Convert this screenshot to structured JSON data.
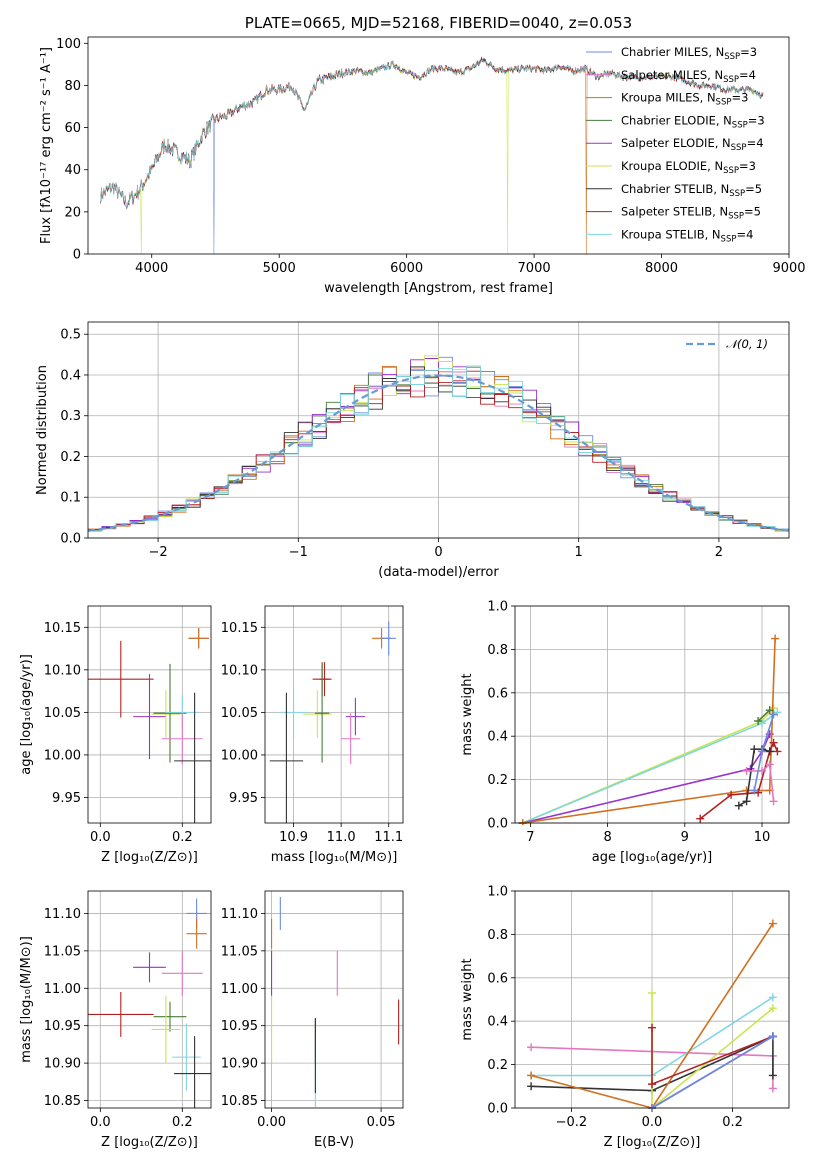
{
  "chart_data": [
    {
      "id": "spectrum",
      "type": "line",
      "title": "PLATE=0665, MJD=52168, FIBERID=0040, z=0.053",
      "xlabel": "wavelength [Angstrom, rest frame]",
      "ylabel": "Flux [fλ10⁻¹⁷ erg cm⁻² s⁻¹ A⁻¹]",
      "xlim": [
        3500,
        9000
      ],
      "ylim": [
        0,
        103
      ],
      "xticks": [
        4000,
        5000,
        6000,
        7000,
        8000,
        9000
      ],
      "yticks": [
        0,
        20,
        40,
        60,
        80,
        100
      ],
      "grid": false,
      "legend_position": "right",
      "spectrum_x": [
        3600,
        3700,
        3800,
        3900,
        4000,
        4100,
        4200,
        4300,
        4400,
        4500,
        4600,
        4700,
        4800,
        4900,
        5000,
        5100,
        5200,
        5300,
        5400,
        5500,
        5600,
        5700,
        5800,
        5900,
        6000,
        6100,
        6200,
        6300,
        6400,
        6500,
        6600,
        6700,
        6800,
        6900,
        7000,
        7100,
        7200,
        7300,
        7400,
        7500,
        7600,
        7700,
        7800,
        7900,
        8000,
        8100,
        8200,
        8300,
        8400,
        8500,
        8600,
        8700,
        8800
      ],
      "spectrum_y": [
        28,
        32,
        24,
        30,
        40,
        52,
        48,
        44,
        57,
        64,
        66,
        70,
        72,
        78,
        78,
        80,
        68,
        82,
        84,
        86,
        87,
        86,
        88,
        90,
        86,
        84,
        88,
        88,
        86,
        88,
        92,
        88,
        87,
        88,
        88,
        87,
        89,
        87,
        88,
        84,
        86,
        84,
        84,
        84,
        84,
        84,
        82,
        80,
        80,
        78,
        78,
        78,
        75
      ],
      "dropouts": [
        {
          "x": 3920,
          "series": "Kroupa ELODIE"
        },
        {
          "x": 4490,
          "series": "Chabrier MILES"
        },
        {
          "x": 6790,
          "series": "Kroupa ELODIE"
        },
        {
          "x": 7410,
          "series": "Kroupa MILES"
        }
      ],
      "legend": [
        {
          "name": "Chabrier MILES, N",
          "sub": "SSP",
          "value": "=3",
          "color": "#6b8ae0"
        },
        {
          "name": "Salpeter MILES, N",
          "sub": "SSP",
          "value": "=4",
          "color": "#e377c2"
        },
        {
          "name": "Kroupa MILES, N",
          "sub": "SSP",
          "value": "=3",
          "color": "#d26f1e"
        },
        {
          "name": "Chabrier ELODIE, N",
          "sub": "SSP",
          "value": "=3",
          "color": "#4a7a3a"
        },
        {
          "name": "Salpeter ELODIE, N",
          "sub": "SSP",
          "value": "=4",
          "color": "#9932cc"
        },
        {
          "name": "Kroupa ELODIE, N",
          "sub": "SSP",
          "value": "=3",
          "color": "#c8e650"
        },
        {
          "name": "Chabrier STELIB, N",
          "sub": "SSP",
          "value": "=5",
          "color": "#333333"
        },
        {
          "name": "Salpeter STELIB, N",
          "sub": "SSP",
          "value": "=5",
          "color": "#b22222"
        },
        {
          "name": "Kroupa STELIB, N",
          "sub": "SSP",
          "value": "=4",
          "color": "#7fd7e0"
        }
      ]
    },
    {
      "id": "residuals",
      "type": "line",
      "xlabel": "(data-model)/error",
      "ylabel": "Normed distribution",
      "xlim": [
        -2.5,
        2.5
      ],
      "ylim": [
        0,
        0.53
      ],
      "xticks": [
        -2,
        -1,
        0,
        1,
        2
      ],
      "xtick_labels": [
        "−2",
        "−1",
        "0",
        "1",
        "2"
      ],
      "yticks": [
        0.0,
        0.1,
        0.2,
        0.3,
        0.4,
        0.5
      ],
      "ytick_labels": [
        "0.0",
        "0.1",
        "0.2",
        "0.3",
        "0.4",
        "0.5"
      ],
      "grid": true,
      "legend": [
        {
          "name": "𝒩(0, 1)",
          "color": "#6a9ad6"
        }
      ],
      "legend_position": "top-right",
      "bin_width": 0.1,
      "hist_colors": [
        "#6b8ae0",
        "#e377c2",
        "#d26f1e",
        "#4a7a3a",
        "#9932cc",
        "#c8e650",
        "#333333",
        "#b22222",
        "#7fd7e0"
      ]
    },
    {
      "id": "age-vs-Z",
      "type": "scatter",
      "xlabel": "Z [log₁₀(Z/Z⊙)]",
      "ylabel": "age  [log₁₀(age/yr)]",
      "xlim": [
        -0.03,
        0.27
      ],
      "ylim": [
        9.92,
        10.175
      ],
      "xticks": [
        0.0,
        0.2
      ],
      "xtick_labels": [
        "0.0",
        "0.2"
      ],
      "yticks": [
        9.95,
        10.0,
        10.05,
        10.1,
        10.15
      ],
      "ytick_labels": [
        "9.95",
        "10.00",
        "10.05",
        "10.10",
        "10.15"
      ],
      "grid": true,
      "points": [
        {
          "x": 0.24,
          "y": 10.137,
          "xerr": 0.025,
          "yerr": 0.012,
          "color": "#6b8ae0"
        },
        {
          "x": 0.24,
          "y": 10.137,
          "xerr": 0.025,
          "yerr": 0.012,
          "color": "#d26f1e"
        },
        {
          "x": 0.05,
          "y": 10.089,
          "xerr": 0.08,
          "yerr": 0.045,
          "color": "#b22222"
        },
        {
          "x": 0.12,
          "y": 10.045,
          "xerr": 0.04,
          "yerr": 0.05,
          "color": "#9932cc"
        },
        {
          "x": 0.16,
          "y": 10.048,
          "xerr": 0.035,
          "yerr": 0.028,
          "color": "#c8e650"
        },
        {
          "x": 0.17,
          "y": 10.049,
          "xerr": 0.04,
          "yerr": 0.058,
          "color": "#4a7a3a"
        },
        {
          "x": 0.2,
          "y": 10.05,
          "xerr": 0.04,
          "yerr": 0.02,
          "color": "#7fd7e0"
        },
        {
          "x": 0.2,
          "y": 10.019,
          "xerr": 0.05,
          "yerr": 0.03,
          "color": "#e377c2"
        },
        {
          "x": 0.23,
          "y": 9.993,
          "xerr": 0.05,
          "yerr": 0.08,
          "color": "#333333"
        }
      ]
    },
    {
      "id": "age-vs-mass",
      "type": "scatter",
      "xlabel": "mass [log₁₀(M/M⊙)]",
      "ylabel": "",
      "xlim": [
        10.84,
        11.13
      ],
      "ylim": [
        9.92,
        10.175
      ],
      "xticks": [
        10.9,
        11.0,
        11.1
      ],
      "xtick_labels": [
        "10.9",
        "11.0",
        "11.1"
      ],
      "yticks": [
        9.95,
        10.0,
        10.05,
        10.1,
        10.15
      ],
      "ytick_labels": [
        "9.95",
        "10.00",
        "10.05",
        "10.10",
        "10.15"
      ],
      "grid": true,
      "points": [
        {
          "x": 11.085,
          "y": 10.137,
          "xerr": 0.02,
          "yerr": 0.012,
          "color": "#d26f1e"
        },
        {
          "x": 11.1,
          "y": 10.137,
          "xerr": 0.015,
          "yerr": 0.02,
          "color": "#6b8ae0"
        },
        {
          "x": 10.96,
          "y": 10.089,
          "xerr": 0.02,
          "yerr": 0.02,
          "color": "#b22222"
        },
        {
          "x": 10.965,
          "y": 10.089,
          "xerr": 0.01,
          "yerr": 0.02,
          "color": "#b22222"
        },
        {
          "x": 10.9,
          "y": 10.05,
          "xerr": 0.03,
          "yerr": 0.03,
          "color": "#7fd7e0"
        },
        {
          "x": 10.95,
          "y": 10.048,
          "xerr": 0.03,
          "yerr": 0.028,
          "color": "#c8e650"
        },
        {
          "x": 10.96,
          "y": 10.049,
          "xerr": 0.015,
          "yerr": 0.058,
          "color": "#4a7a3a"
        },
        {
          "x": 11.03,
          "y": 10.045,
          "xerr": 0.02,
          "yerr": 0.022,
          "color": "#9932cc"
        },
        {
          "x": 11.02,
          "y": 10.019,
          "xerr": 0.02,
          "yerr": 0.03,
          "color": "#e377c2"
        },
        {
          "x": 10.885,
          "y": 9.993,
          "xerr": 0.035,
          "yerr": 0.08,
          "color": "#333333"
        }
      ]
    },
    {
      "id": "massweight-vs-age",
      "type": "line",
      "xlabel": "age  [log₁₀(age/yr)]",
      "ylabel": "mass weight",
      "xlim": [
        6.8,
        10.35
      ],
      "ylim": [
        0.0,
        1.0
      ],
      "xticks": [
        7,
        8,
        9,
        10
      ],
      "xtick_labels": [
        "7",
        "8",
        "9",
        "10"
      ],
      "yticks": [
        0.0,
        0.2,
        0.4,
        0.6,
        0.8,
        1.0
      ],
      "ytick_labels": [
        "0.0",
        "0.2",
        "0.4",
        "0.6",
        "0.8",
        "1.0"
      ],
      "grid": true,
      "series": [
        {
          "color": "#c8e650",
          "points": [
            [
              6.9,
              0.0
            ],
            [
              10.0,
              0.47
            ],
            [
              10.15,
              0.53
            ]
          ]
        },
        {
          "color": "#7fd7e0",
          "points": [
            [
              6.9,
              0.0
            ],
            [
              10.0,
              0.46
            ],
            [
              10.2,
              0.51
            ]
          ]
        },
        {
          "color": "#9932cc",
          "points": [
            [
              6.9,
              0.0
            ],
            [
              9.85,
              0.25
            ],
            [
              10.0,
              0.33
            ],
            [
              10.1,
              0.41
            ]
          ]
        },
        {
          "color": "#d26f1e",
          "points": [
            [
              6.9,
              0.0
            ],
            [
              9.8,
              0.15
            ],
            [
              10.1,
              0.15
            ],
            [
              10.17,
              0.85
            ]
          ]
        },
        {
          "color": "#b22222",
          "points": [
            [
              9.2,
              0.02
            ],
            [
              9.6,
              0.13
            ],
            [
              9.95,
              0.14
            ],
            [
              10.1,
              0.33
            ],
            [
              10.15,
              0.37
            ],
            [
              10.2,
              0.33
            ]
          ]
        },
        {
          "color": "#333333",
          "points": [
            [
              9.7,
              0.08
            ],
            [
              9.8,
              0.1
            ],
            [
              9.9,
              0.34
            ],
            [
              10.0,
              0.34
            ],
            [
              10.1,
              0.33
            ]
          ]
        },
        {
          "color": "#e377c2",
          "points": [
            [
              9.8,
              0.24
            ],
            [
              10.0,
              0.24
            ],
            [
              10.1,
              0.27
            ],
            [
              10.15,
              0.1
            ]
          ]
        },
        {
          "color": "#6b8ae0",
          "points": [
            [
              9.9,
              0.15
            ],
            [
              10.0,
              0.33
            ],
            [
              10.15,
              0.5
            ]
          ]
        },
        {
          "color": "#4a7a3a",
          "points": [
            [
              9.95,
              0.47
            ],
            [
              10.1,
              0.52
            ]
          ]
        }
      ]
    },
    {
      "id": "mass-vs-Z",
      "type": "scatter",
      "xlabel": "Z [log₁₀(Z/Z⊙)]",
      "ylabel": "mass [log₁₀(M/M⊙)]",
      "xlim": [
        -0.03,
        0.27
      ],
      "ylim": [
        10.84,
        11.13
      ],
      "xticks": [
        0.0,
        0.2
      ],
      "xtick_labels": [
        "0.0",
        "0.2"
      ],
      "yticks": [
        10.85,
        10.9,
        10.95,
        11.0,
        11.05,
        11.1
      ],
      "ytick_labels": [
        "10.85",
        "10.90",
        "10.95",
        "11.00",
        "11.05",
        "11.10"
      ],
      "grid": true,
      "points": [
        {
          "x": 0.235,
          "y": 11.1,
          "xerr": 0.025,
          "yerr": 0.02,
          "color": "#6b8ae0"
        },
        {
          "x": 0.235,
          "y": 11.073,
          "xerr": 0.025,
          "yerr": 0.02,
          "color": "#d26f1e"
        },
        {
          "x": 0.12,
          "y": 11.028,
          "xerr": 0.04,
          "yerr": 0.02,
          "color": "#9932cc"
        },
        {
          "x": 0.2,
          "y": 11.02,
          "xerr": 0.05,
          "yerr": 0.03,
          "color": "#e377c2"
        },
        {
          "x": 0.05,
          "y": 10.965,
          "xerr": 0.08,
          "yerr": 0.03,
          "color": "#b22222"
        },
        {
          "x": 0.17,
          "y": 10.962,
          "xerr": 0.04,
          "yerr": 0.02,
          "color": "#4a7a3a"
        },
        {
          "x": 0.16,
          "y": 10.945,
          "xerr": 0.035,
          "yerr": 0.045,
          "color": "#c8e650"
        },
        {
          "x": 0.21,
          "y": 10.908,
          "xerr": 0.035,
          "yerr": 0.045,
          "color": "#7fd7e0"
        },
        {
          "x": 0.23,
          "y": 10.886,
          "xerr": 0.05,
          "yerr": 0.05,
          "color": "#333333"
        }
      ]
    },
    {
      "id": "mass-vs-EBV",
      "type": "scatter",
      "xlabel": "E(B-V)",
      "ylabel": "",
      "xlim": [
        -0.003,
        0.06
      ],
      "ylim": [
        10.84,
        11.13
      ],
      "xticks": [
        0.0,
        0.05
      ],
      "xtick_labels": [
        "0.00",
        "0.05"
      ],
      "yticks": [
        10.85,
        10.9,
        10.95,
        11.0,
        11.05,
        11.1
      ],
      "ytick_labels": [
        "10.85",
        "10.90",
        "10.95",
        "11.00",
        "11.05",
        "11.10"
      ],
      "grid": true,
      "points": [
        {
          "x": 0.004,
          "y": 11.1,
          "xerr": 0.0,
          "yerr": 0.022,
          "color": "#6b8ae0"
        },
        {
          "x": 0.0,
          "y": 11.073,
          "xerr": 0.0,
          "yerr": 0.02,
          "color": "#d26f1e"
        },
        {
          "x": 0.0,
          "y": 11.02,
          "xerr": 0.0,
          "yerr": 0.03,
          "color": "#9932cc"
        },
        {
          "x": 0.03,
          "y": 11.02,
          "xerr": 0.0,
          "yerr": 0.03,
          "color": "#e377c2"
        },
        {
          "x": 0.0,
          "y": 10.945,
          "xerr": 0.0,
          "yerr": 0.045,
          "color": "#c8e650"
        },
        {
          "x": 0.02,
          "y": 10.93,
          "xerr": 0.0,
          "yerr": 0.03,
          "color": "#4a7a3a"
        },
        {
          "x": 0.02,
          "y": 10.886,
          "xerr": 0.0,
          "yerr": 0.045,
          "color": "#7fd7e0"
        },
        {
          "x": 0.02,
          "y": 10.91,
          "xerr": 0.0,
          "yerr": 0.05,
          "color": "#333333"
        },
        {
          "x": 0.058,
          "y": 10.955,
          "xerr": 0.0,
          "yerr": 0.03,
          "color": "#b22222"
        }
      ]
    },
    {
      "id": "massweight-vs-Z",
      "type": "line",
      "xlabel": "Z [log₁₀(Z/Z⊙)]",
      "ylabel": "mass weight",
      "xlim": [
        -0.34,
        0.34
      ],
      "ylim": [
        0.0,
        1.0
      ],
      "xticks": [
        -0.2,
        0.0,
        0.2
      ],
      "xtick_labels": [
        "−0.2",
        "0.0",
        "0.2"
      ],
      "yticks": [
        0.0,
        0.2,
        0.4,
        0.6,
        0.8,
        1.0
      ],
      "ytick_labels": [
        "0.0",
        "0.2",
        "0.4",
        "0.6",
        "0.8",
        "1.0"
      ],
      "grid": true,
      "series": [
        {
          "color": "#e377c2",
          "points": [
            [
              -0.3,
              0.28
            ],
            [
              0.3,
              0.24
            ],
            [
              0.3,
              0.09
            ]
          ]
        },
        {
          "color": "#7fd7e0",
          "points": [
            [
              -0.3,
              0.15
            ],
            [
              0.0,
              0.15
            ],
            [
              0.3,
              0.51
            ]
          ]
        },
        {
          "color": "#333333",
          "points": [
            [
              -0.3,
              0.1
            ],
            [
              0.0,
              0.08
            ],
            [
              0.3,
              0.33
            ],
            [
              0.3,
              0.15
            ]
          ]
        },
        {
          "color": "#d26f1e",
          "points": [
            [
              -0.3,
              0.15
            ],
            [
              0.0,
              0.0
            ],
            [
              0.3,
              0.85
            ]
          ]
        },
        {
          "color": "#c8e650",
          "points": [
            [
              0.0,
              0.53
            ],
            [
              0.0,
              0.0
            ],
            [
              0.3,
              0.46
            ]
          ]
        },
        {
          "color": "#b22222",
          "points": [
            [
              0.0,
              0.37
            ],
            [
              0.0,
              0.11
            ],
            [
              0.3,
              0.33
            ]
          ]
        },
        {
          "color": "#9932cc",
          "points": [
            [
              0.0,
              0.0
            ],
            [
              0.3,
              0.33
            ]
          ]
        },
        {
          "color": "#6b8ae0",
          "points": [
            [
              0.0,
              0.0
            ],
            [
              0.3,
              0.33
            ]
          ]
        }
      ]
    }
  ]
}
